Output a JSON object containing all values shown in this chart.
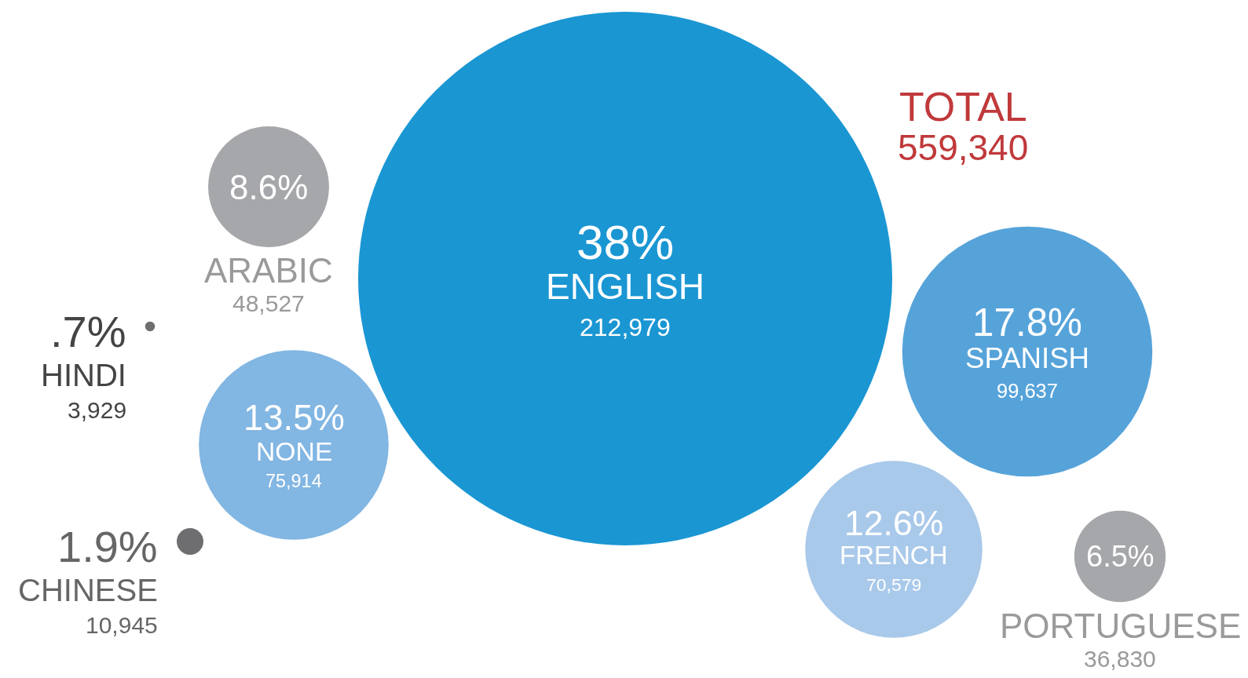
{
  "chart_data": {
    "type": "other",
    "title": "TOTAL",
    "annotations": [
      "559,340",
      {
        "text": "212,979",
        "x": "ENGLISH"
      },
      {
        "text": "48,527",
        "x": "ARABIC"
      },
      {
        "text": "3,929",
        "x": "HINDI"
      },
      {
        "text": "75,914",
        "x": "NONE"
      },
      {
        "text": "10,945",
        "x": "CHINESE"
      },
      {
        "text": "99,637",
        "x": "SPANISH"
      },
      {
        "text": "70,579",
        "x": "FRENCH"
      },
      {
        "text": "36,830",
        "x": "PORTUGUESE"
      }
    ],
    "categories": [
      "ENGLISH",
      "ARABIC",
      "HINDI",
      "NONE",
      "CHINESE",
      "SPANISH",
      "FRENCH",
      "PORTUGUESE"
    ],
    "values": [
      38,
      8.6,
      0.7,
      13.5,
      1.9,
      17.8,
      12.6,
      6.5
    ],
    "value_labels": [
      "38%",
      "8.6%",
      ".7%",
      "13.5%",
      "1.9%",
      "17.8%",
      "12.6%",
      "6.5%"
    ],
    "colors": [
      "#1a96d3",
      "#a6a7aa",
      "#6e6e70",
      "#82b6e3",
      "#6e6e70",
      "#56a3da",
      "#a9c9ea",
      "#a6a7aa"
    ]
  }
}
